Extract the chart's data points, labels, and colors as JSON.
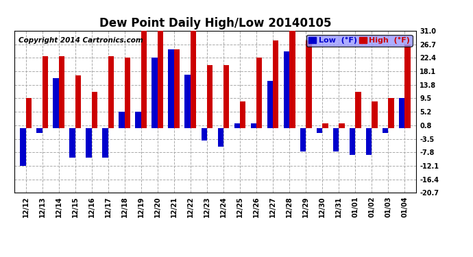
{
  "title": "Dew Point Daily High/Low 20140105",
  "copyright": "Copyright 2014 Cartronics.com",
  "legend_low": "Low  (°F)",
  "legend_high": "High  (°F)",
  "dates": [
    "12/12",
    "12/13",
    "12/14",
    "12/15",
    "12/16",
    "12/17",
    "12/18",
    "12/19",
    "12/20",
    "12/21",
    "12/22",
    "12/23",
    "12/24",
    "12/25",
    "12/26",
    "12/27",
    "12/28",
    "12/29",
    "12/30",
    "12/31",
    "01/01",
    "01/02",
    "01/03",
    "01/04"
  ],
  "high": [
    9.5,
    23.0,
    23.0,
    16.7,
    11.5,
    23.0,
    22.4,
    31.0,
    31.0,
    25.0,
    31.0,
    20.0,
    20.0,
    8.5,
    22.4,
    28.0,
    31.0,
    28.0,
    1.5,
    1.5,
    11.5,
    8.5,
    9.5,
    26.7
  ],
  "low": [
    -12.1,
    -1.5,
    16.0,
    -9.5,
    -9.5,
    -9.5,
    5.2,
    5.2,
    22.4,
    25.0,
    17.0,
    -4.0,
    -6.0,
    1.5,
    1.5,
    15.0,
    24.5,
    -7.5,
    -1.5,
    -7.5,
    -8.5,
    -8.5,
    -1.5,
    9.5
  ],
  "ylim": [
    -20.7,
    31.0
  ],
  "yticks": [
    -20.7,
    -16.4,
    -12.1,
    -7.8,
    -3.5,
    0.8,
    5.2,
    9.5,
    13.8,
    18.1,
    22.4,
    26.7,
    31.0
  ],
  "bar_width": 0.35,
  "high_color": "#cc0000",
  "low_color": "#0000cc",
  "bg_color": "#ffffff",
  "plot_bg_color": "#ffffff",
  "grid_color": "#aaaaaa",
  "title_fontsize": 12,
  "copyright_fontsize": 7.5,
  "tick_fontsize": 7,
  "legend_fontsize": 8
}
